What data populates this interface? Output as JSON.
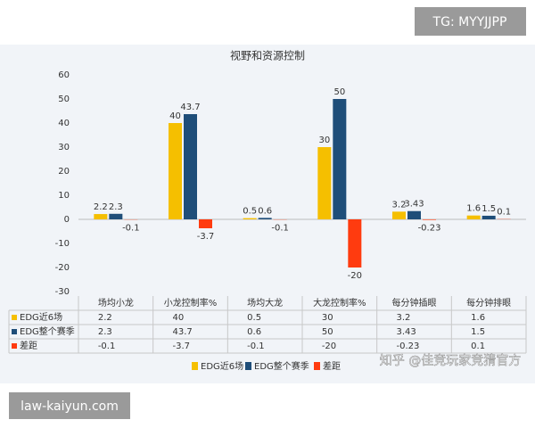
{
  "overlays": {
    "tag": "TG: MYYJJPP",
    "site": "law-kaiyun.com",
    "watermark": "知乎 @佳竞玩家竞猜官方"
  },
  "chart_data": {
    "type": "bar",
    "title": "视野和资源控制",
    "categories": [
      "场均小龙",
      "小龙控制率%",
      "场均大龙",
      "大龙控制率%",
      "每分钟插眼",
      "每分钟排眼"
    ],
    "series": [
      {
        "name": "EDG近6场",
        "color": "#f5bf00",
        "values": [
          2.2,
          40,
          0.5,
          30,
          3.2,
          1.6
        ]
      },
      {
        "name": "EDG整个赛季",
        "color": "#1f4e79",
        "values": [
          2.3,
          43.7,
          0.6,
          50,
          3.43,
          1.5
        ]
      },
      {
        "name": "差距",
        "color": "#ff3b0f",
        "values": [
          -0.1,
          -3.7,
          -0.1,
          -20,
          -0.23,
          0.1
        ]
      }
    ],
    "ylim": [
      -30,
      60
    ],
    "yticks": [
      -30,
      -20,
      -10,
      0,
      10,
      20,
      30,
      40,
      50,
      60
    ],
    "grid": false
  }
}
